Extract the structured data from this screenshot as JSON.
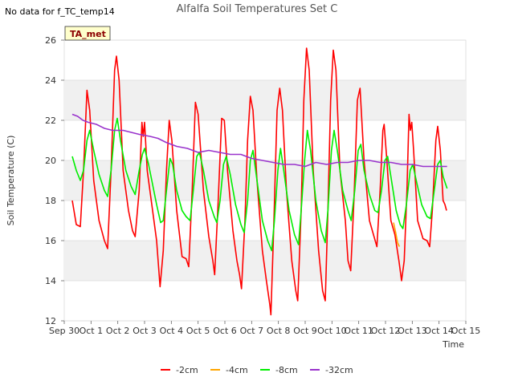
{
  "chart_data": {
    "type": "line",
    "title": "Alfalfa Soil Temperatures Set C",
    "note": "No data for f_TC_temp14",
    "tag": "TA_met",
    "xlabel": "Time",
    "ylabel": "Soil Temperature (C)",
    "xlim": [
      0,
      15
    ],
    "ylim": [
      12,
      26
    ],
    "x_ticks": [
      {
        "v": 0,
        "label": "Sep 30"
      },
      {
        "v": 1,
        "label": "Oct 1"
      },
      {
        "v": 2,
        "label": "Oct 2"
      },
      {
        "v": 3,
        "label": "Oct 3"
      },
      {
        "v": 4,
        "label": "Oct 4"
      },
      {
        "v": 5,
        "label": "Oct 5"
      },
      {
        "v": 6,
        "label": "Oct 6"
      },
      {
        "v": 7,
        "label": "Oct 7"
      },
      {
        "v": 8,
        "label": "Oct 8"
      },
      {
        "v": 9,
        "label": "Oct 9"
      },
      {
        "v": 10,
        "label": "Oct 10"
      },
      {
        "v": 11,
        "label": "Oct 11"
      },
      {
        "v": 12,
        "label": "Oct 12"
      },
      {
        "v": 13,
        "label": "Oct 13"
      },
      {
        "v": 14,
        "label": "Oct 14"
      },
      {
        "v": 15,
        "label": "Oct 15"
      }
    ],
    "y_ticks": [
      12,
      14,
      16,
      18,
      20,
      22,
      24,
      26
    ],
    "bands": [
      [
        14,
        16
      ],
      [
        18,
        20
      ],
      [
        22,
        24
      ]
    ],
    "series": [
      {
        "name": "-2cm",
        "color": "#ff0000",
        "points": [
          [
            0.3,
            18.0
          ],
          [
            0.45,
            16.8
          ],
          [
            0.6,
            16.7
          ],
          [
            0.72,
            19.5
          ],
          [
            0.85,
            23.5
          ],
          [
            0.95,
            22.5
          ],
          [
            1.1,
            19.0
          ],
          [
            1.3,
            17.0
          ],
          [
            1.5,
            16.0
          ],
          [
            1.62,
            15.6
          ],
          [
            1.75,
            19.5
          ],
          [
            1.88,
            24.5
          ],
          [
            1.95,
            25.2
          ],
          [
            2.05,
            24.0
          ],
          [
            2.2,
            19.5
          ],
          [
            2.4,
            17.5
          ],
          [
            2.55,
            16.5
          ],
          [
            2.65,
            16.2
          ],
          [
            2.8,
            18.5
          ],
          [
            2.9,
            21.9
          ],
          [
            2.95,
            21.2
          ],
          [
            3.0,
            21.9
          ],
          [
            3.1,
            19.5
          ],
          [
            3.3,
            17.5
          ],
          [
            3.45,
            16.0
          ],
          [
            3.58,
            13.7
          ],
          [
            3.7,
            15.5
          ],
          [
            3.82,
            19.5
          ],
          [
            3.92,
            22.0
          ],
          [
            4.02,
            21.0
          ],
          [
            4.2,
            17.5
          ],
          [
            4.4,
            15.2
          ],
          [
            4.55,
            15.1
          ],
          [
            4.65,
            14.7
          ],
          [
            4.78,
            18.5
          ],
          [
            4.9,
            22.9
          ],
          [
            5.0,
            22.3
          ],
          [
            5.2,
            18.5
          ],
          [
            5.4,
            16.2
          ],
          [
            5.55,
            15.0
          ],
          [
            5.62,
            14.3
          ],
          [
            5.75,
            18.0
          ],
          [
            5.88,
            22.1
          ],
          [
            5.98,
            22.0
          ],
          [
            6.1,
            19.5
          ],
          [
            6.3,
            16.5
          ],
          [
            6.45,
            15.0
          ],
          [
            6.55,
            14.3
          ],
          [
            6.62,
            13.6
          ],
          [
            6.75,
            17.0
          ],
          [
            6.85,
            21.0
          ],
          [
            6.95,
            23.2
          ],
          [
            7.05,
            22.5
          ],
          [
            7.2,
            19.0
          ],
          [
            7.4,
            15.5
          ],
          [
            7.55,
            14.0
          ],
          [
            7.68,
            12.8
          ],
          [
            7.72,
            12.3
          ],
          [
            7.82,
            16.5
          ],
          [
            7.95,
            22.5
          ],
          [
            8.05,
            23.6
          ],
          [
            8.15,
            22.5
          ],
          [
            8.3,
            18.5
          ],
          [
            8.5,
            15.0
          ],
          [
            8.65,
            13.5
          ],
          [
            8.72,
            13.0
          ],
          [
            8.85,
            17.5
          ],
          [
            8.95,
            23.0
          ],
          [
            9.05,
            25.6
          ],
          [
            9.15,
            24.5
          ],
          [
            9.3,
            19.5
          ],
          [
            9.5,
            15.5
          ],
          [
            9.65,
            13.5
          ],
          [
            9.75,
            13.0
          ],
          [
            9.85,
            17.5
          ],
          [
            9.95,
            23.0
          ],
          [
            10.05,
            25.5
          ],
          [
            10.15,
            24.5
          ],
          [
            10.3,
            19.5
          ],
          [
            10.5,
            17.0
          ],
          [
            10.6,
            15.0
          ],
          [
            10.7,
            14.5
          ],
          [
            10.82,
            18.0
          ],
          [
            10.95,
            23.0
          ],
          [
            11.05,
            23.6
          ],
          [
            11.2,
            20.0
          ],
          [
            11.4,
            17.0
          ],
          [
            11.55,
            16.3
          ],
          [
            11.68,
            15.7
          ],
          [
            11.8,
            18.5
          ],
          [
            11.9,
            21.5
          ],
          [
            11.95,
            21.8
          ],
          [
            12.05,
            20.0
          ],
          [
            12.2,
            17.0
          ],
          [
            12.35,
            16.3
          ],
          [
            12.5,
            15.0
          ],
          [
            12.6,
            14.0
          ],
          [
            12.7,
            15.0
          ],
          [
            12.8,
            18.5
          ],
          [
            12.88,
            22.3
          ],
          [
            12.93,
            21.5
          ],
          [
            12.98,
            21.9
          ],
          [
            13.05,
            20.5
          ],
          [
            13.2,
            17.0
          ],
          [
            13.4,
            16.1
          ],
          [
            13.55,
            16.0
          ],
          [
            13.65,
            15.7
          ],
          [
            13.75,
            17.5
          ],
          [
            13.88,
            21.0
          ],
          [
            13.95,
            21.7
          ],
          [
            14.05,
            20.5
          ],
          [
            14.15,
            18.0
          ],
          [
            14.22,
            17.8
          ],
          [
            14.28,
            17.5
          ]
        ]
      },
      {
        "name": "-4cm",
        "color": "#ffa500",
        "points": [
          [
            12.3,
            16.9
          ],
          [
            12.38,
            16.4
          ],
          [
            12.45,
            15.9
          ],
          [
            12.52,
            15.7
          ]
        ]
      },
      {
        "name": "-8cm",
        "color": "#00ee00",
        "points": [
          [
            0.3,
            20.2
          ],
          [
            0.45,
            19.5
          ],
          [
            0.6,
            19.0
          ],
          [
            0.72,
            19.5
          ],
          [
            0.85,
            21.0
          ],
          [
            0.95,
            21.5
          ],
          [
            1.1,
            20.5
          ],
          [
            1.3,
            19.3
          ],
          [
            1.5,
            18.5
          ],
          [
            1.62,
            18.2
          ],
          [
            1.75,
            19.5
          ],
          [
            1.88,
            21.5
          ],
          [
            1.98,
            22.1
          ],
          [
            2.1,
            21.0
          ],
          [
            2.3,
            19.5
          ],
          [
            2.5,
            18.7
          ],
          [
            2.65,
            18.3
          ],
          [
            2.8,
            19.5
          ],
          [
            2.92,
            20.3
          ],
          [
            3.0,
            20.6
          ],
          [
            3.15,
            19.8
          ],
          [
            3.3,
            18.8
          ],
          [
            3.45,
            17.8
          ],
          [
            3.6,
            16.9
          ],
          [
            3.7,
            17.0
          ],
          [
            3.82,
            18.5
          ],
          [
            3.95,
            20.1
          ],
          [
            4.05,
            19.8
          ],
          [
            4.2,
            18.5
          ],
          [
            4.4,
            17.5
          ],
          [
            4.55,
            17.2
          ],
          [
            4.7,
            17.0
          ],
          [
            4.82,
            18.5
          ],
          [
            4.95,
            20.2
          ],
          [
            5.05,
            20.4
          ],
          [
            5.2,
            19.5
          ],
          [
            5.4,
            18.0
          ],
          [
            5.6,
            17.2
          ],
          [
            5.7,
            16.9
          ],
          [
            5.82,
            18.0
          ],
          [
            5.95,
            19.8
          ],
          [
            6.05,
            20.2
          ],
          [
            6.2,
            19.3
          ],
          [
            6.4,
            17.8
          ],
          [
            6.6,
            16.8
          ],
          [
            6.72,
            16.4
          ],
          [
            6.85,
            18.0
          ],
          [
            6.95,
            20.0
          ],
          [
            7.05,
            20.5
          ],
          [
            7.2,
            19.0
          ],
          [
            7.4,
            17.0
          ],
          [
            7.6,
            16.0
          ],
          [
            7.75,
            15.5
          ],
          [
            7.85,
            17.0
          ],
          [
            7.98,
            19.5
          ],
          [
            8.08,
            20.6
          ],
          [
            8.2,
            19.5
          ],
          [
            8.4,
            17.5
          ],
          [
            8.6,
            16.3
          ],
          [
            8.75,
            15.8
          ],
          [
            8.85,
            17.5
          ],
          [
            8.98,
            20.0
          ],
          [
            9.08,
            21.5
          ],
          [
            9.2,
            20.5
          ],
          [
            9.4,
            18.0
          ],
          [
            9.6,
            16.5
          ],
          [
            9.75,
            15.9
          ],
          [
            9.85,
            17.5
          ],
          [
            9.98,
            20.5
          ],
          [
            10.08,
            21.5
          ],
          [
            10.2,
            20.5
          ],
          [
            10.4,
            18.5
          ],
          [
            10.6,
            17.5
          ],
          [
            10.72,
            17.0
          ],
          [
            10.85,
            18.5
          ],
          [
            10.98,
            20.5
          ],
          [
            11.08,
            20.8
          ],
          [
            11.2,
            19.5
          ],
          [
            11.4,
            18.3
          ],
          [
            11.6,
            17.5
          ],
          [
            11.72,
            17.4
          ],
          [
            11.85,
            18.5
          ],
          [
            11.98,
            20.0
          ],
          [
            12.08,
            20.2
          ],
          [
            12.2,
            19.2
          ],
          [
            12.4,
            17.5
          ],
          [
            12.55,
            16.8
          ],
          [
            12.65,
            16.6
          ],
          [
            12.78,
            17.8
          ],
          [
            12.92,
            19.5
          ],
          [
            13.02,
            19.8
          ],
          [
            13.15,
            19.0
          ],
          [
            13.35,
            17.8
          ],
          [
            13.55,
            17.2
          ],
          [
            13.68,
            17.1
          ],
          [
            13.82,
            18.5
          ],
          [
            13.95,
            19.8
          ],
          [
            14.05,
            20.0
          ],
          [
            14.15,
            19.2
          ],
          [
            14.25,
            18.8
          ],
          [
            14.3,
            18.6
          ]
        ]
      },
      {
        "name": "-32cm",
        "color": "#9933cc",
        "points": [
          [
            0.3,
            22.3
          ],
          [
            0.5,
            22.2
          ],
          [
            0.7,
            22.0
          ],
          [
            0.9,
            21.9
          ],
          [
            1.2,
            21.8
          ],
          [
            1.5,
            21.6
          ],
          [
            1.8,
            21.5
          ],
          [
            2.2,
            21.5
          ],
          [
            2.5,
            21.4
          ],
          [
            2.8,
            21.3
          ],
          [
            3.2,
            21.2
          ],
          [
            3.5,
            21.1
          ],
          [
            3.8,
            20.9
          ],
          [
            4.2,
            20.7
          ],
          [
            4.6,
            20.6
          ],
          [
            5.0,
            20.4
          ],
          [
            5.4,
            20.5
          ],
          [
            5.8,
            20.4
          ],
          [
            6.2,
            20.3
          ],
          [
            6.6,
            20.3
          ],
          [
            7.0,
            20.1
          ],
          [
            7.4,
            20.0
          ],
          [
            7.8,
            19.9
          ],
          [
            8.2,
            19.8
          ],
          [
            8.6,
            19.8
          ],
          [
            9.0,
            19.7
          ],
          [
            9.4,
            19.9
          ],
          [
            9.8,
            19.8
          ],
          [
            10.2,
            19.9
          ],
          [
            10.6,
            19.9
          ],
          [
            11.0,
            20.0
          ],
          [
            11.4,
            20.0
          ],
          [
            11.8,
            19.9
          ],
          [
            12.2,
            19.9
          ],
          [
            12.6,
            19.8
          ],
          [
            13.0,
            19.8
          ],
          [
            13.4,
            19.7
          ],
          [
            13.8,
            19.7
          ],
          [
            14.1,
            19.7
          ],
          [
            14.3,
            19.7
          ]
        ]
      }
    ]
  }
}
